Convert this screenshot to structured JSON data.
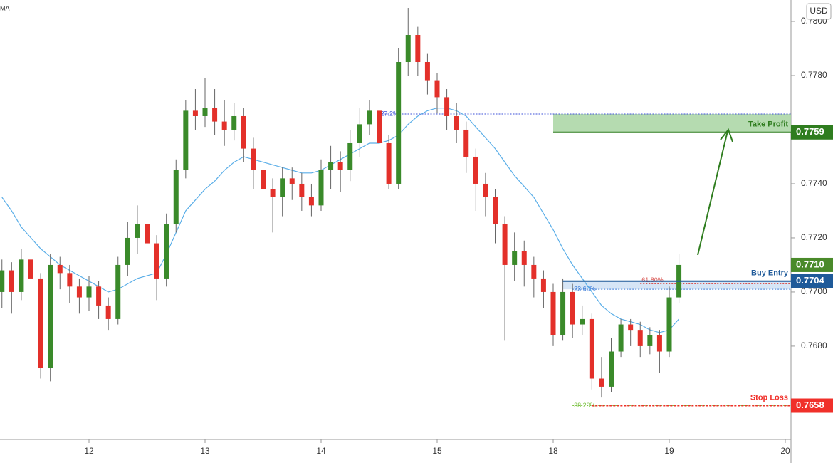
{
  "chart_data": {
    "type": "candlestick",
    "currency": "USD",
    "ma_label": "MA",
    "ma_color": "#5aaee8",
    "up_color": "#3a8a2a",
    "down_color": "#e3302a",
    "ylim": [
      0.76455,
      0.78079
    ],
    "yticks": [
      {
        "value": 0.78,
        "label": "0.7800"
      },
      {
        "value": 0.778,
        "label": "0.7780"
      },
      {
        "value": 0.774,
        "label": "0.7740"
      },
      {
        "value": 0.772,
        "label": "0.7720"
      },
      {
        "value": 0.77,
        "label": "0.7700"
      },
      {
        "value": 0.768,
        "label": "0.7680"
      }
    ],
    "categories": [
      null,
      null,
      null,
      null,
      null,
      null,
      null,
      null,
      null,
      "12",
      null,
      null,
      null,
      null,
      null,
      null,
      null,
      null,
      null,
      null,
      null,
      "13",
      null,
      null,
      null,
      null,
      null,
      null,
      null,
      null,
      null,
      null,
      null,
      "14",
      null,
      null,
      null,
      null,
      null,
      null,
      null,
      null,
      null,
      null,
      null,
      "15",
      null,
      null,
      null,
      null,
      null,
      null,
      null,
      null,
      null,
      null,
      null,
      "18",
      null,
      null,
      null,
      null,
      null,
      null,
      null,
      null,
      null,
      null,
      null,
      "19",
      null,
      null,
      null,
      null,
      null,
      null,
      null,
      null,
      null,
      null,
      null,
      "20"
    ],
    "open": [
      0.77,
      0.7708,
      0.77,
      0.7712,
      0.7705,
      0.7672,
      0.771,
      0.7707,
      0.7702,
      0.7698,
      0.7702,
      0.7695,
      0.769,
      0.771,
      0.772,
      0.7725,
      0.7718,
      0.7705,
      0.7725,
      0.7745,
      0.7767,
      0.7765,
      0.7768,
      0.7763,
      0.776,
      0.7765,
      0.7753,
      0.7745,
      0.7738,
      0.7735,
      0.7742,
      0.774,
      0.7735,
      0.7732,
      0.7745,
      0.7748,
      0.7745,
      0.7755,
      0.7762,
      0.7767,
      0.7755,
      0.774,
      0.7785,
      0.7795,
      0.7785,
      0.7778,
      0.7772,
      0.7765,
      0.776,
      0.775,
      0.774,
      0.7735,
      0.7725,
      0.771,
      0.7715,
      0.771,
      0.7705,
      0.77,
      0.7684,
      0.77,
      0.7688,
      0.769,
      0.7668,
      0.7665,
      0.7678,
      0.7688,
      0.7686,
      0.768,
      0.7684,
      0.7678,
      0.7698,
      null,
      null,
      null,
      null,
      null,
      null,
      null,
      null,
      null,
      null,
      null
    ],
    "high": [
      0.7712,
      0.7711,
      0.7716,
      0.7715,
      0.7707,
      0.7714,
      0.7713,
      0.771,
      0.7705,
      0.7706,
      0.7704,
      0.7698,
      0.7713,
      0.7726,
      0.7732,
      0.7729,
      0.7721,
      0.7729,
      0.7749,
      0.7771,
      0.7775,
      0.7779,
      0.7775,
      0.7771,
      0.777,
      0.7768,
      0.7757,
      0.7749,
      0.7742,
      0.7746,
      0.7746,
      0.7744,
      0.774,
      0.7749,
      0.7754,
      0.7752,
      0.776,
      0.7768,
      0.7771,
      0.7769,
      0.7758,
      0.779,
      0.7805,
      0.7798,
      0.7788,
      0.7781,
      0.7775,
      0.777,
      0.7763,
      0.7753,
      0.7744,
      0.7738,
      0.7728,
      0.7722,
      0.7719,
      0.7713,
      0.7708,
      0.7703,
      0.7705,
      0.7703,
      0.7695,
      0.7692,
      0.7676,
      0.7683,
      0.769,
      0.769,
      0.7689,
      0.7687,
      0.7686,
      0.7702,
      0.7714,
      null,
      null,
      null,
      null,
      null,
      null,
      null,
      null,
      null,
      null,
      null
    ],
    "low": [
      0.7694,
      0.7692,
      0.7697,
      0.77,
      0.7668,
      0.7667,
      0.7701,
      0.7696,
      0.7692,
      0.7693,
      0.769,
      0.7686,
      0.7688,
      0.7706,
      0.7714,
      0.7712,
      0.7697,
      0.7702,
      0.7722,
      0.7742,
      0.776,
      0.7761,
      0.7758,
      0.7754,
      0.7756,
      0.7748,
      0.7738,
      0.773,
      0.7722,
      0.7728,
      0.7734,
      0.773,
      0.7728,
      0.773,
      0.7738,
      0.7737,
      0.7741,
      0.775,
      0.7758,
      0.775,
      0.7738,
      0.7738,
      0.778,
      0.778,
      0.7773,
      0.7766,
      0.776,
      0.7755,
      0.7744,
      0.773,
      0.7728,
      0.7718,
      0.7682,
      0.7704,
      0.7702,
      0.7698,
      0.7694,
      0.768,
      0.7682,
      0.7683,
      0.7684,
      0.7664,
      0.7661,
      0.7663,
      0.7676,
      0.768,
      0.7676,
      0.7677,
      0.767,
      0.7676,
      0.7696,
      null,
      null,
      null,
      null,
      null,
      null,
      null,
      null,
      null,
      null,
      null
    ],
    "close": [
      0.7708,
      0.77,
      0.7712,
      0.7705,
      0.7672,
      0.771,
      0.7707,
      0.7702,
      0.7698,
      0.7702,
      0.7695,
      0.769,
      0.771,
      0.772,
      0.7725,
      0.7718,
      0.7705,
      0.7725,
      0.7745,
      0.7767,
      0.7765,
      0.7768,
      0.7763,
      0.776,
      0.7765,
      0.7753,
      0.7745,
      0.7738,
      0.7735,
      0.7742,
      0.774,
      0.7735,
      0.7732,
      0.7745,
      0.7748,
      0.7745,
      0.7755,
      0.7762,
      0.7767,
      0.7755,
      0.774,
      0.7785,
      0.7795,
      0.7785,
      0.7778,
      0.7772,
      0.7765,
      0.776,
      0.775,
      0.774,
      0.7735,
      0.7725,
      0.771,
      0.7715,
      0.771,
      0.7705,
      0.77,
      0.7684,
      0.77,
      0.7688,
      0.769,
      0.7668,
      0.7665,
      0.7678,
      0.7688,
      0.7686,
      0.768,
      0.7684,
      0.7678,
      0.7698,
      0.771,
      null,
      null,
      null,
      null,
      null,
      null,
      null,
      null,
      null,
      null,
      null
    ],
    "ma": [
      0.7735,
      0.773,
      0.7724,
      0.772,
      0.7716,
      0.7713,
      0.771,
      0.7708,
      0.7706,
      0.7704,
      0.7702,
      0.77,
      0.7701,
      0.7703,
      0.7705,
      0.7706,
      0.7707,
      0.7714,
      0.7722,
      0.773,
      0.7734,
      0.7738,
      0.7741,
      0.7745,
      0.7748,
      0.775,
      0.7749,
      0.7748,
      0.7747,
      0.7746,
      0.7745,
      0.7744,
      0.7744,
      0.7745,
      0.7747,
      0.7749,
      0.7751,
      0.7753,
      0.7755,
      0.7755,
      0.7756,
      0.7758,
      0.7762,
      0.7765,
      0.7767,
      0.7768,
      0.7768,
      0.7767,
      0.7765,
      0.7761,
      0.7757,
      0.7753,
      0.7748,
      0.7743,
      0.7739,
      0.7735,
      0.7729,
      0.7723,
      0.7716,
      0.771,
      0.7705,
      0.77,
      0.7695,
      0.7692,
      0.769,
      0.7689,
      0.7688,
      0.7686,
      0.7685,
      0.7686,
      0.769,
      null,
      null,
      null,
      null,
      null,
      null,
      null,
      null,
      null,
      null,
      null
    ],
    "zones": [
      {
        "from": 0.7759,
        "to": 0.77658,
        "color": "#a8d5a2"
      },
      {
        "from": 0.7701,
        "to": 0.7704,
        "color": "#cfe0f5"
      }
    ],
    "levels": [
      {
        "label": "Take Profit",
        "value": 0.7759,
        "price_label": "0.7759",
        "color": "#2f7d1f"
      },
      {
        "label": "Buy Entry",
        "value": 0.7704,
        "price_label": "0.7704",
        "color": "#1f5a99"
      },
      {
        "label": "Stop Loss",
        "value": 0.7658,
        "price_label": "0.7658",
        "color": "#f0302a"
      }
    ],
    "fib_levels": [
      {
        "label": "27.2%",
        "value": 0.77658,
        "color": "#3b4fd8"
      },
      {
        "label": "61.80%",
        "value": 0.7703,
        "color": "#d9534f"
      },
      {
        "label": "23.60%",
        "value": 0.7701,
        "color": "#3b7bd8"
      },
      {
        "label": "38.20%",
        "value": 0.7658,
        "color": "#7cc243"
      }
    ],
    "last_price": {
      "value": 0.771,
      "label": "0.7710",
      "color": "#4a8a2a"
    }
  }
}
